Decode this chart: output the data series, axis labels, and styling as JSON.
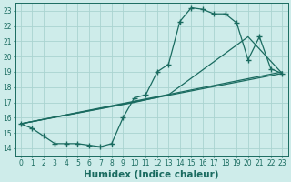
{
  "bg_color": "#ceecea",
  "grid_color": "#aad4d0",
  "line_color": "#1a6b60",
  "marker": "+",
  "marker_size": 4,
  "marker_lw": 1.0,
  "line_width": 0.9,
  "xlabel": "Humidex (Indice chaleur)",
  "xlabel_fontsize": 7.5,
  "tick_fontsize": 5.5,
  "xlim": [
    -0.5,
    23.5
  ],
  "ylim": [
    13.5,
    23.5
  ],
  "yticks": [
    14,
    15,
    16,
    17,
    18,
    19,
    20,
    21,
    22,
    23
  ],
  "xticks": [
    0,
    1,
    2,
    3,
    4,
    5,
    6,
    7,
    8,
    9,
    10,
    11,
    12,
    13,
    14,
    15,
    16,
    17,
    18,
    19,
    20,
    21,
    22,
    23
  ],
  "line1_x": [
    0,
    1,
    2,
    3,
    4,
    5,
    6,
    7,
    8,
    9,
    10,
    11,
    12,
    13,
    14,
    15,
    16,
    17,
    18,
    19,
    20,
    21,
    22,
    23
  ],
  "line1_y": [
    15.6,
    15.3,
    14.8,
    14.3,
    14.3,
    14.3,
    14.2,
    14.1,
    14.3,
    16.0,
    17.3,
    17.5,
    19.0,
    19.5,
    22.3,
    23.2,
    23.1,
    22.8,
    22.8,
    22.2,
    19.8,
    21.3,
    19.2,
    18.9
  ],
  "line2_x": [
    0,
    10,
    13,
    20,
    23
  ],
  "line2_y": [
    15.6,
    17.0,
    17.5,
    21.3,
    18.9
  ],
  "line3_x": [
    0,
    23
  ],
  "line3_y": [
    15.6,
    18.9
  ],
  "line4_x": [
    0,
    23
  ],
  "line4_y": [
    15.6,
    19.0
  ]
}
